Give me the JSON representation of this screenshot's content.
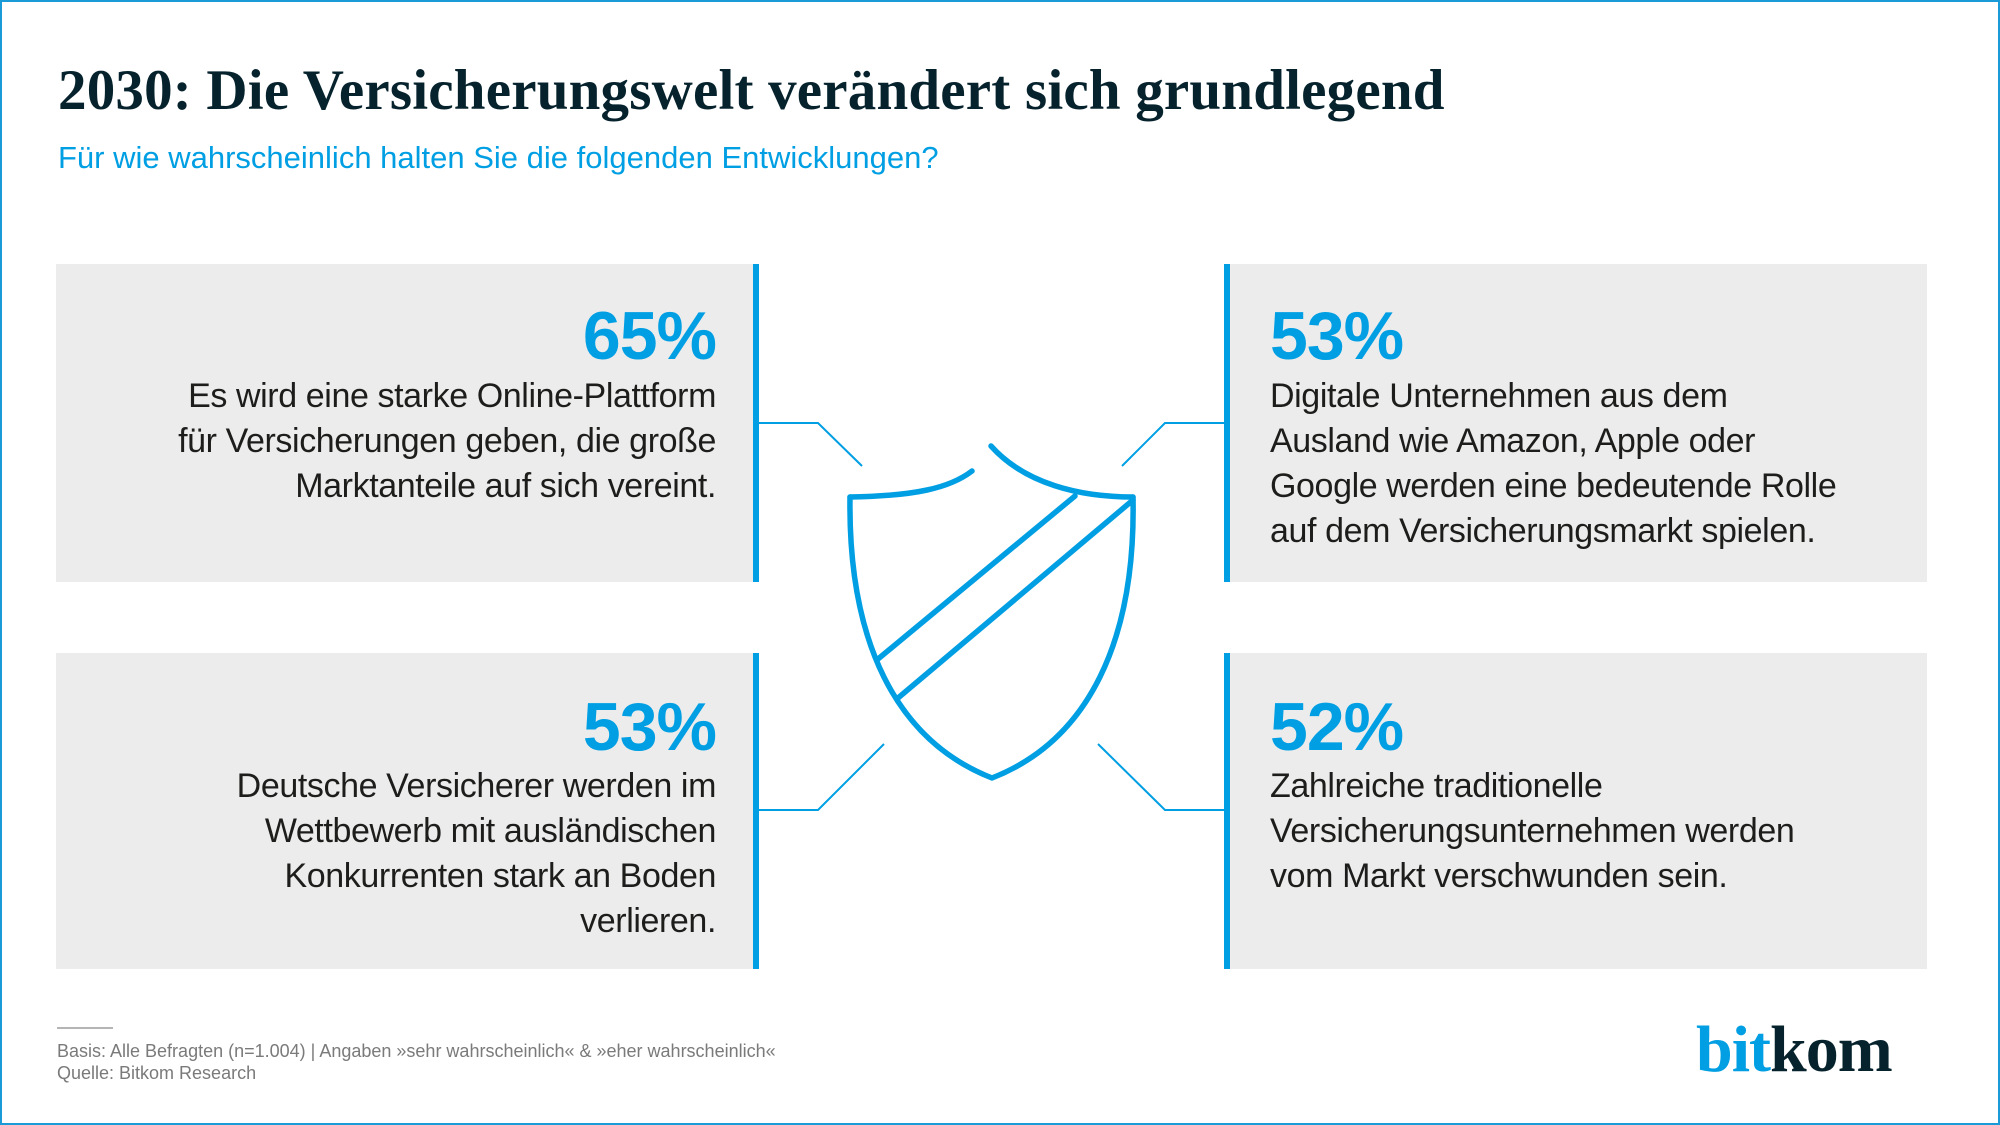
{
  "header": {
    "title": "2030: Die Versicherungswelt verändert sich grundlegend",
    "subtitle": "Für wie wahrscheinlich halten Sie die folgenden Entwicklungen?"
  },
  "cards": [
    {
      "percent": "65%",
      "value": 65,
      "lines": [
        "Es wird eine starke Online-Plattform",
        "für Versicherungen geben, die große",
        "Marktanteile auf sich vereint."
      ]
    },
    {
      "percent": "53%",
      "value": 53,
      "lines": [
        "Digitale Unternehmen aus dem",
        "Ausland wie Amazon, Apple oder",
        "Google werden eine bedeutende Rolle",
        "auf dem Versicherungsmarkt spielen."
      ]
    },
    {
      "percent": "53%",
      "value": 53,
      "lines": [
        "Deutsche Versicherer werden im",
        "Wettbewerb mit ausländischen",
        "Konkurrenten stark an Boden",
        "verlieren."
      ]
    },
    {
      "percent": "52%",
      "value": 52,
      "lines": [
        "Zahlreiche traditionelle",
        "Versicherungsunternehmen werden",
        "vom Markt verschwunden sein."
      ]
    }
  ],
  "center_icon": "shield-icon",
  "footer": {
    "basis": "Basis: Alle Befragten (n=1.004) | Angaben »sehr wahrscheinlich« & »eher wahrscheinlich«",
    "source": "Quelle: Bitkom Research"
  },
  "logo": {
    "part1": "bit",
    "part2": "kom"
  },
  "colors": {
    "accent": "#009fe3",
    "title": "#06232d",
    "card_background": "#ececec",
    "body_text": "#1d1d1b",
    "footer_text": "#7a7a7a"
  }
}
